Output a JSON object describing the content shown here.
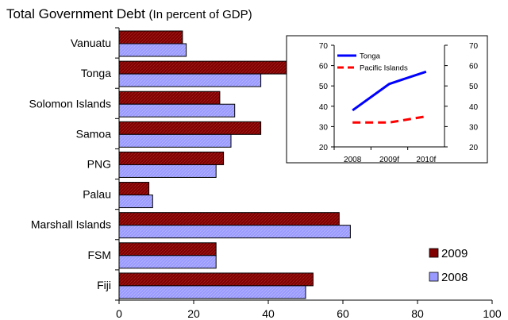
{
  "chart_data": [
    {
      "type": "bar",
      "orientation": "horizontal",
      "title": "Total Government Debt",
      "subtitle": "(In percent of GDP)",
      "categories": [
        "Vanuatu",
        "Tonga",
        "Solomon Islands",
        "Samoa",
        "PNG",
        "Palau",
        "Marshall Islands",
        "FSM",
        "Fiji"
      ],
      "series": [
        {
          "name": "2009",
          "values": [
            17,
            51,
            27,
            38,
            28,
            8,
            59,
            26,
            52
          ],
          "color": "#800000"
        },
        {
          "name": "2008",
          "values": [
            18,
            38,
            31,
            30,
            26,
            9,
            62,
            26,
            50
          ],
          "color": "#9999ff"
        }
      ],
      "xlim": [
        0,
        100
      ],
      "xticks": [
        "0",
        "20",
        "40",
        "60",
        "80",
        "100"
      ],
      "grid": false,
      "legend": "bottom-right"
    },
    {
      "type": "line",
      "x": [
        "2008",
        "2009f",
        "2010f"
      ],
      "series": [
        {
          "name": "Tonga",
          "values": [
            38,
            51,
            57
          ],
          "color": "#0000ff",
          "style": "solid"
        },
        {
          "name": "Pacific Islands",
          "values": [
            32,
            32,
            35
          ],
          "color": "#ff0000",
          "style": "dashed"
        }
      ],
      "ylim": [
        20,
        70
      ],
      "yticks": [
        "20",
        "30",
        "40",
        "50",
        "60",
        "70"
      ],
      "y2ticks": [
        "20",
        "30",
        "40",
        "50",
        "60",
        "70"
      ],
      "grid": false,
      "legend": "top-left"
    }
  ]
}
